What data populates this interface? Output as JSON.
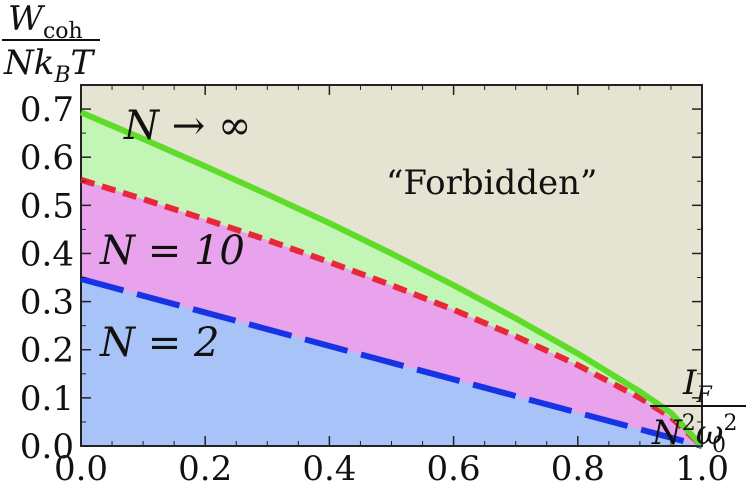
{
  "chart_data": {
    "type": "area",
    "xlim": [
      0,
      1
    ],
    "ylim": [
      0,
      0.75
    ],
    "x_ticks": [
      "0.0",
      "0.2",
      "0.4",
      "0.6",
      "0.8",
      "1.0"
    ],
    "y_ticks": [
      "0.0",
      "0.1",
      "0.2",
      "0.3",
      "0.4",
      "0.5",
      "0.6",
      "0.7"
    ],
    "grid": false,
    "background_region_label": "“Forbidden”",
    "series": [
      {
        "name": "N → ∞",
        "color": "#5fdc2a",
        "fill": "#c2f5b6",
        "linestyle": "solid",
        "x": [
          0,
          0.1,
          0.2,
          0.3,
          0.4,
          0.5,
          0.6,
          0.7,
          0.8,
          0.9,
          0.95,
          1.0
        ],
        "y": [
          0.693,
          0.638,
          0.581,
          0.523,
          0.463,
          0.4,
          0.334,
          0.265,
          0.192,
          0.113,
          0.069,
          0.0
        ]
      },
      {
        "name": "N = 10",
        "color": "#e8283a",
        "fill": "#e8a3ec",
        "linestyle": "dashed",
        "x": [
          0,
          0.1,
          0.2,
          0.3,
          0.4,
          0.5,
          0.6,
          0.7,
          0.8,
          0.9,
          0.95,
          1.0
        ],
        "y": [
          0.553,
          0.513,
          0.471,
          0.428,
          0.382,
          0.334,
          0.283,
          0.228,
          0.168,
          0.1,
          0.06,
          0.0
        ]
      },
      {
        "name": "N = 2",
        "color": "#1733e6",
        "fill": "#a7c3f7",
        "linestyle": "longdash",
        "x": [
          0,
          0.5,
          1.0
        ],
        "y": [
          0.347,
          0.173,
          0.0
        ]
      }
    ],
    "forbidden_fill": "#e5e3d1"
  }
}
